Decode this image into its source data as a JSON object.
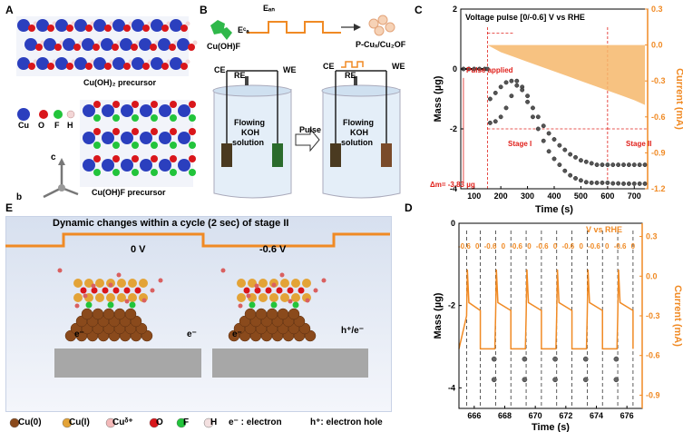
{
  "panels": {
    "a": "A",
    "b": "B",
    "c": "C",
    "d": "D",
    "e": "E"
  },
  "panelA": {
    "precursor1": "Cu(OH)₂ precursor",
    "precursor2": "Cu(OH)F precursor",
    "legend": [
      "Cu",
      "O",
      "F",
      "H"
    ],
    "axes": [
      "c",
      "b"
    ]
  },
  "panelB": {
    "start": "Cu(OH)F",
    "ean": "Eₐₙ",
    "eca": "Eᶜₐ",
    "product": "P-Cuₓ/Cu₂OF",
    "ce": "CE",
    "re": "RE",
    "we": "WE",
    "solution": [
      "Flowing",
      "KOH",
      "solution"
    ],
    "pulse": "Pulse"
  },
  "panelC": {
    "title": "Voltage pulse [0/-0.6] V vs RHE",
    "pulse_applied": "Pulse applied",
    "stage1": "Stage I",
    "stage2": "Stage II",
    "delta_m": "Δm= -3.83 µg"
  },
  "panelD": {
    "v_vs_rhe": "V vs RHE",
    "voltages": [
      "-0.6",
      "0",
      "-0.6",
      "0",
      "-0.6",
      "0",
      "-0.6",
      "0",
      "-0.6",
      "0",
      "-0.6",
      "0",
      "-0.6",
      "0"
    ]
  },
  "panelE": {
    "title": "Dynamic changes within a cycle (2 sec) of stage II",
    "v0": "0 V",
    "v1": "-0.6 V",
    "e_label": "e⁻",
    "hole_label": "h⁺/e⁻",
    "legend": [
      "Cu(0)",
      "Cu(I)",
      "Cuᵟ⁺",
      "O",
      "F",
      "H"
    ],
    "electron_note": "e⁻ : electron",
    "hole_note": "h⁺: electron hole"
  },
  "chart_data": [
    {
      "type": "scatter",
      "title": "Voltage pulse [0/-0.6] V vs RHE",
      "xlabel": "Time (s)",
      "ylabel": "Mass (µg)",
      "ylabel_right": "Current (mA)",
      "xlim": [
        50,
        750
      ],
      "ylim": [
        -4,
        2
      ],
      "ylim_right": [
        -1.2,
        0.3
      ],
      "xticks": [
        100,
        200,
        300,
        400,
        500,
        600,
        700
      ],
      "yticks": [
        -4,
        -2,
        0,
        2
      ],
      "yticks_right": [
        -1.2,
        -0.9,
        -0.6,
        -0.3,
        0.0,
        0.3
      ],
      "series": [
        {
          "x": [
            60,
            80,
            100,
            120,
            140,
            150,
            160,
            180,
            200,
            220,
            240,
            260,
            280,
            300,
            320,
            340,
            360,
            380,
            400,
            420,
            440,
            460,
            480,
            500,
            520,
            540,
            560,
            580,
            600,
            620,
            640,
            660,
            680,
            700,
            720,
            740
          ],
          "values": [
            0,
            0,
            0,
            0,
            0,
            0,
            -1.0,
            -0.8,
            -0.6,
            -0.45,
            -0.4,
            -0.4,
            -0.6,
            -0.9,
            -1.3,
            -1.6,
            -1.9,
            -2.15,
            -2.35,
            -2.55,
            -2.7,
            -2.85,
            -2.95,
            -3.05,
            -3.1,
            -3.15,
            -3.2,
            -3.2,
            -3.2,
            -3.2,
            -3.2,
            -3.2,
            -3.2,
            -3.2,
            -3.2,
            -3.2
          ]
        },
        {
          "x": [
            160,
            180,
            200,
            220,
            240,
            260,
            280,
            300,
            320,
            340,
            360,
            380,
            400,
            420,
            440,
            460,
            480,
            500,
            520,
            540,
            560,
            580,
            600,
            620,
            640,
            660,
            680,
            700,
            720,
            740
          ],
          "values": [
            -1.8,
            -1.75,
            -1.6,
            -1.3,
            -0.9,
            -0.55,
            -0.7,
            -1.1,
            -1.6,
            -2.0,
            -2.4,
            -2.75,
            -3.0,
            -3.2,
            -3.4,
            -3.55,
            -3.65,
            -3.72,
            -3.78,
            -3.8,
            -3.8,
            -3.8,
            -3.8,
            -3.82,
            -3.82,
            -3.83,
            -3.83,
            -3.83,
            -3.83,
            -3.83
          ]
        },
        {
          "x": [
            150,
            200,
            250,
            300,
            350,
            400,
            450,
            500,
            550,
            600,
            650,
            700,
            740
          ],
          "values": [
            0,
            0,
            0,
            0,
            0,
            0,
            0,
            0,
            0,
            0,
            0,
            0,
            0
          ],
          "lower": [
            0,
            -0.06,
            -0.1,
            -0.14,
            -0.18,
            -0.22,
            -0.26,
            -0.3,
            -0.34,
            -0.38,
            -0.42,
            -0.46,
            -0.5
          ]
        }
      ],
      "stage_bounds": [
        150,
        600,
        750
      ]
    },
    {
      "type": "line",
      "xlabel": "Time (s)",
      "ylabel": "Mass (µg)",
      "ylabel_right": "Current (mA)",
      "xlim": [
        665,
        677
      ],
      "ylim": [
        -4.5,
        0
      ],
      "ylim_right": [
        -1.0,
        0.4
      ],
      "xticks": [
        666,
        668,
        670,
        672,
        674,
        676
      ],
      "yticks": [
        -4,
        -2,
        0
      ],
      "yticks_right": [
        -0.9,
        -0.6,
        -0.3,
        0.0,
        0.3
      ],
      "pulse_times": [
        665.5,
        666.4,
        667.4,
        668.4,
        669.4,
        670.4,
        671.4,
        672.4,
        673.4,
        674.4,
        675.4,
        676.4
      ],
      "mass_points": [
        {
          "x": 667.3,
          "y": -3.3
        },
        {
          "x": 667.3,
          "y": -3.8
        },
        {
          "x": 669.3,
          "y": -3.3
        },
        {
          "x": 669.3,
          "y": -3.8
        },
        {
          "x": 671.3,
          "y": -3.3
        },
        {
          "x": 671.3,
          "y": -3.8
        },
        {
          "x": 673.3,
          "y": -3.3
        },
        {
          "x": 673.3,
          "y": -3.8
        },
        {
          "x": 675.3,
          "y": -3.3
        },
        {
          "x": 675.3,
          "y": -3.8
        }
      ]
    }
  ]
}
